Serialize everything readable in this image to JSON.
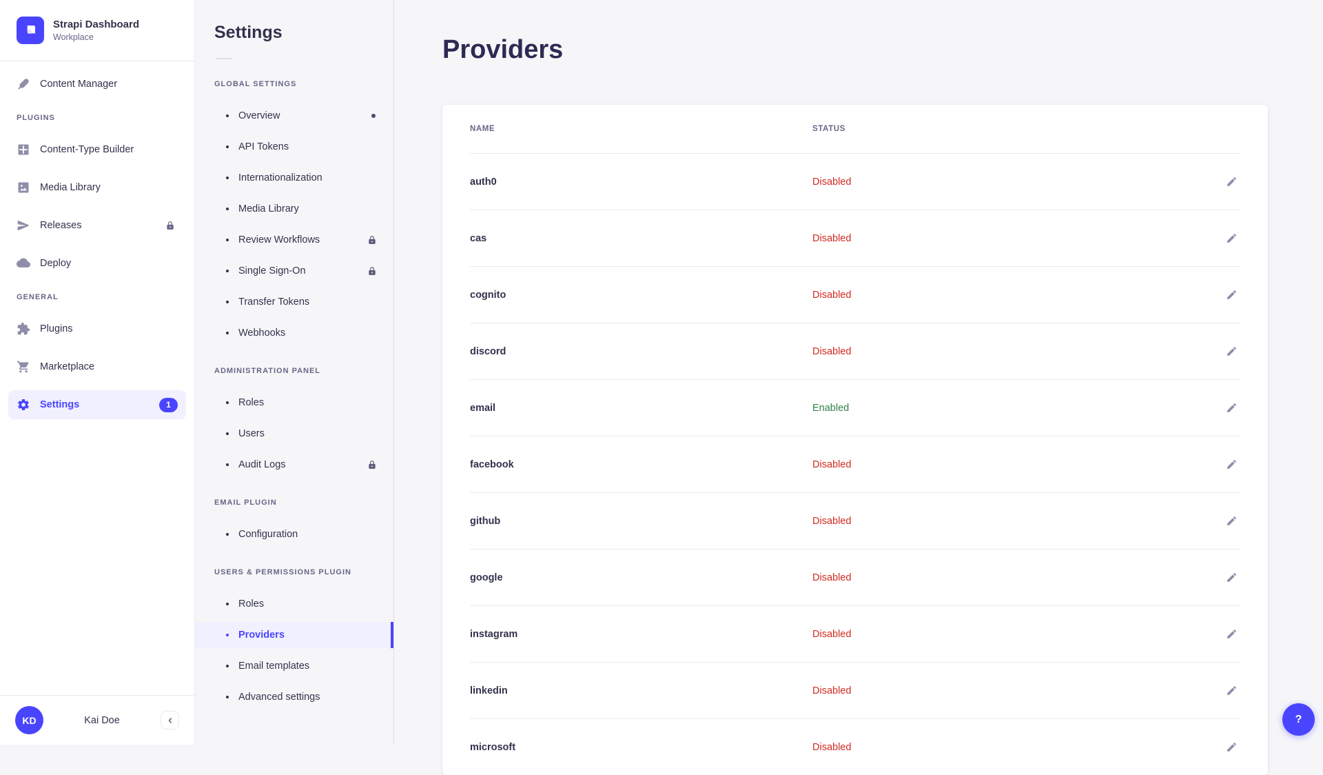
{
  "colors": {
    "accent": "#4945FF",
    "enabled": "#328048",
    "disabled": "#D02B20",
    "selected_bg": "#F0F0FF"
  },
  "brand": {
    "title": "Strapi Dashboard",
    "subtitle": "Workplace",
    "logo_icon": "strapi-logo"
  },
  "sidebar": {
    "sections": [
      {
        "label": "",
        "items": [
          {
            "label": "Content Manager",
            "icon": "content-manager"
          }
        ]
      },
      {
        "label": "PLUGINS",
        "items": [
          {
            "label": "Content-Type Builder",
            "icon": "content-type-builder"
          },
          {
            "label": "Media Library",
            "icon": "media-library"
          },
          {
            "label": "Releases",
            "icon": "releases",
            "locked": true
          },
          {
            "label": "Deploy",
            "icon": "deploy"
          }
        ]
      },
      {
        "label": "GENERAL",
        "items": [
          {
            "label": "Plugins",
            "icon": "plugins"
          },
          {
            "label": "Marketplace",
            "icon": "marketplace"
          },
          {
            "label": "Settings",
            "icon": "settings",
            "active": true,
            "badge": "1"
          }
        ]
      }
    ]
  },
  "user": {
    "initials": "KD",
    "name": "Kai Doe"
  },
  "subnav": {
    "title": "Settings",
    "sections": [
      {
        "label": "GLOBAL SETTINGS",
        "items": [
          {
            "label": "Overview",
            "notification_dot": true
          },
          {
            "label": "API Tokens"
          },
          {
            "label": "Internationalization"
          },
          {
            "label": "Media Library"
          },
          {
            "label": "Review Workflows",
            "locked": true
          },
          {
            "label": "Single Sign-On",
            "locked": true
          },
          {
            "label": "Transfer Tokens"
          },
          {
            "label": "Webhooks"
          }
        ]
      },
      {
        "label": "ADMINISTRATION PANEL",
        "items": [
          {
            "label": "Roles"
          },
          {
            "label": "Users"
          },
          {
            "label": "Audit Logs",
            "locked": true
          }
        ]
      },
      {
        "label": "EMAIL PLUGIN",
        "items": [
          {
            "label": "Configuration"
          }
        ]
      },
      {
        "label": "USERS & PERMISSIONS PLUGIN",
        "items": [
          {
            "label": "Roles"
          },
          {
            "label": "Providers",
            "active": true
          },
          {
            "label": "Email templates"
          },
          {
            "label": "Advanced settings"
          }
        ]
      }
    ]
  },
  "main": {
    "title": "Providers",
    "table": {
      "columns": [
        "NAME",
        "STATUS"
      ],
      "rows": [
        {
          "name": "auth0",
          "status": "Disabled"
        },
        {
          "name": "cas",
          "status": "Disabled"
        },
        {
          "name": "cognito",
          "status": "Disabled"
        },
        {
          "name": "discord",
          "status": "Disabled"
        },
        {
          "name": "email",
          "status": "Enabled"
        },
        {
          "name": "facebook",
          "status": "Disabled"
        },
        {
          "name": "github",
          "status": "Disabled"
        },
        {
          "name": "google",
          "status": "Disabled"
        },
        {
          "name": "instagram",
          "status": "Disabled"
        },
        {
          "name": "linkedin",
          "status": "Disabled"
        },
        {
          "name": "microsoft",
          "status": "Disabled"
        }
      ]
    }
  },
  "help": {
    "label": "?"
  }
}
